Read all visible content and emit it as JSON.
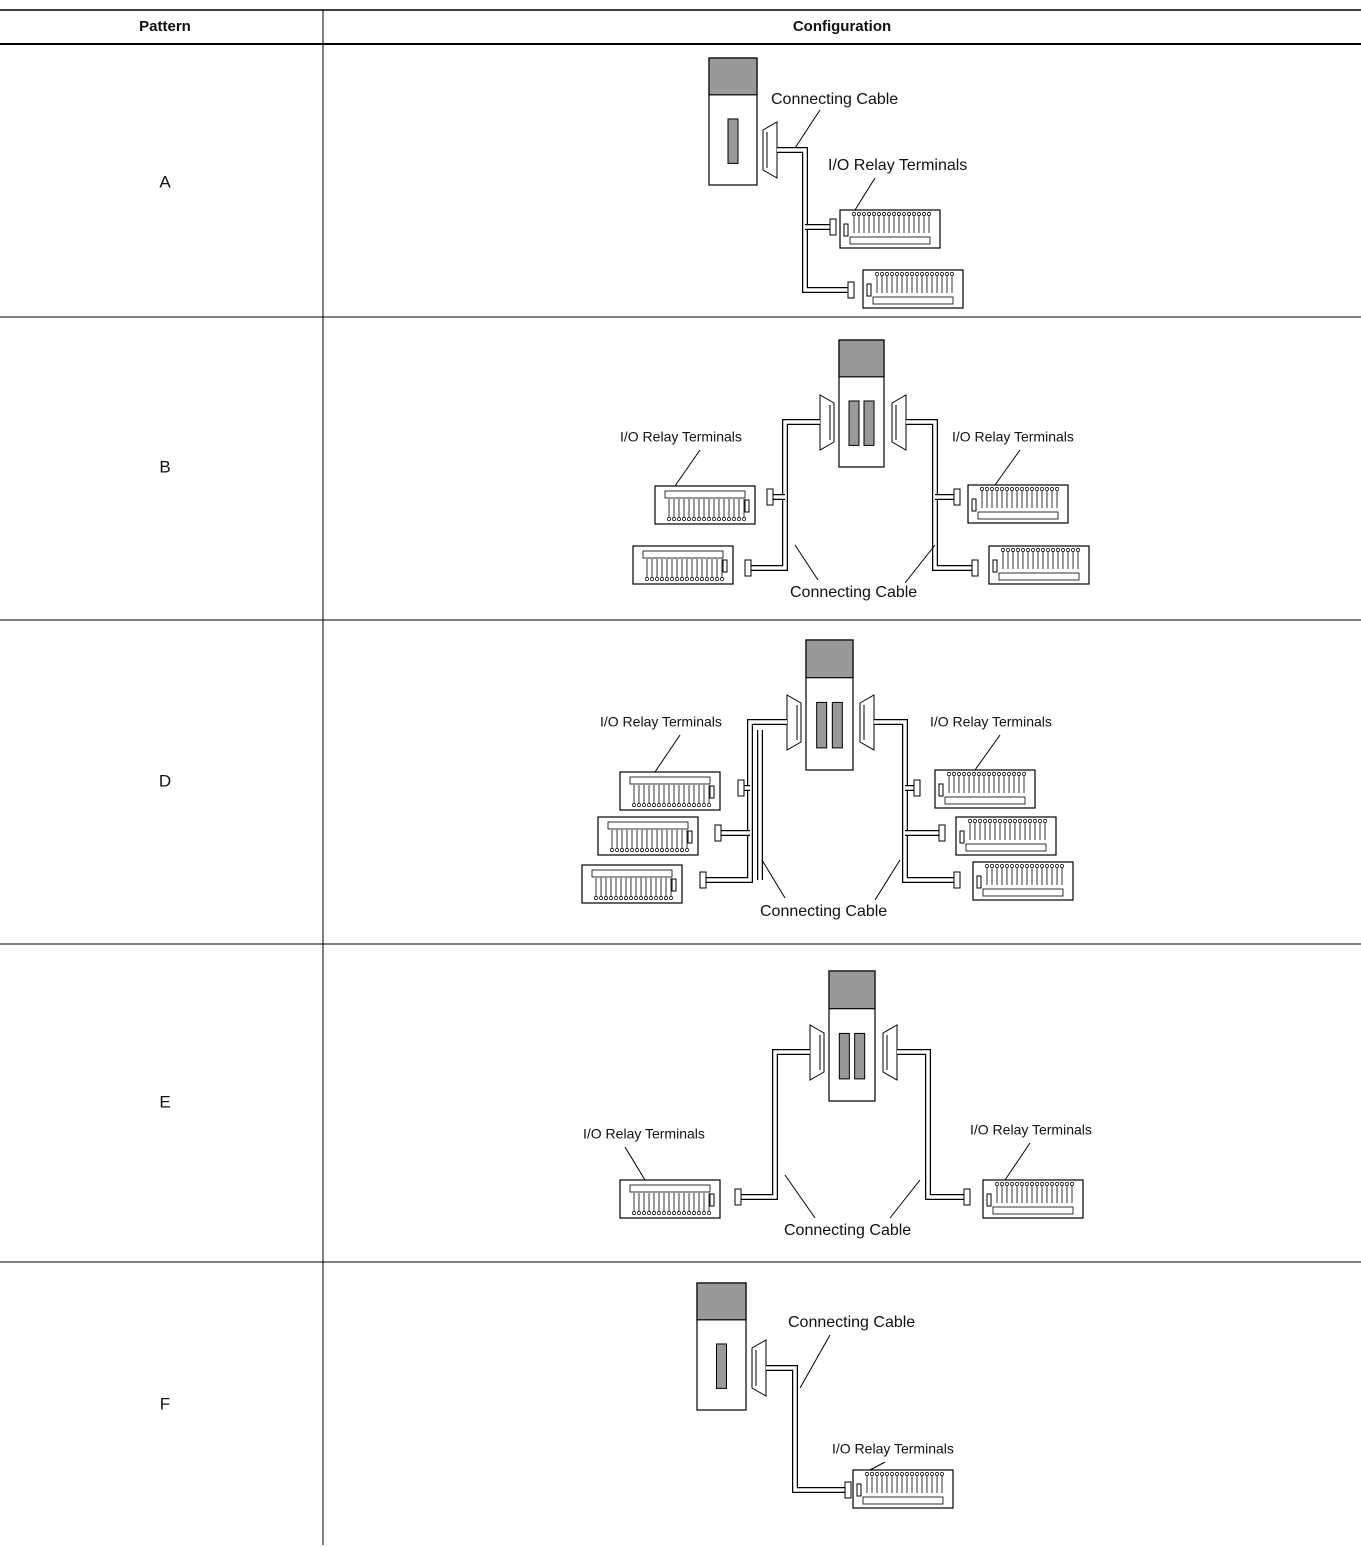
{
  "table": {
    "header": [
      "Pattern",
      "Configuration"
    ],
    "rows": [
      {
        "pattern": "A",
        "labels": [
          "Connecting Cable",
          "I/O Relay Terminals"
        ]
      },
      {
        "pattern": "B",
        "labels": [
          "I/O Relay Terminals",
          "I/O Relay Terminals",
          "Connecting Cable"
        ]
      },
      {
        "pattern": "D",
        "labels": [
          "I/O Relay Terminals",
          "I/O Relay Terminals",
          "Connecting Cable"
        ]
      },
      {
        "pattern": "E",
        "labels": [
          "I/O Relay Terminals",
          "I/O Relay Terminals",
          "Connecting Cable"
        ]
      },
      {
        "pattern": "F",
        "labels": [
          "Connecting Cable",
          "I/O Relay Terminals"
        ]
      }
    ]
  }
}
